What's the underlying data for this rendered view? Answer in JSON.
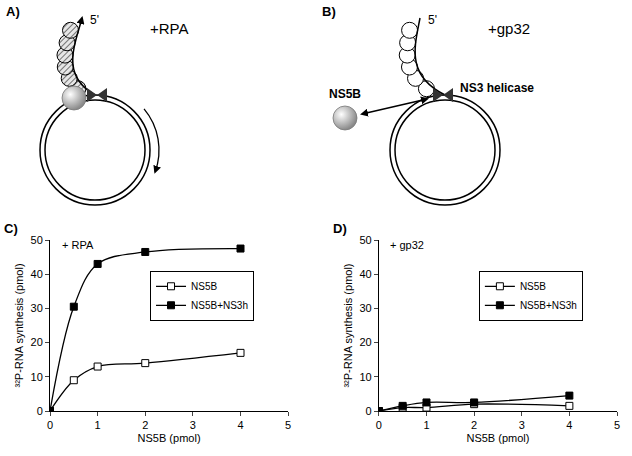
{
  "diagram": {
    "panel_a": {
      "label": "A)",
      "condition": "+RPA",
      "end_label": "5'"
    },
    "panel_b": {
      "label": "B)",
      "condition": "+gp32",
      "end_label": "5'",
      "polymerase": "NS5B",
      "helicase": "NS3 helicase"
    }
  },
  "chart_data": [
    {
      "type": "line",
      "panel_label": "C)",
      "annotation": "+ RPA",
      "x_label": "NS5B (pmol)",
      "y_label": "³²P-RNA synthesis (pmol)",
      "x": [
        0,
        0.5,
        1,
        2,
        4
      ],
      "xlim": [
        0,
        5
      ],
      "xticks": [
        0,
        1,
        2,
        3,
        4,
        5
      ],
      "ylim": [
        0,
        50
      ],
      "yticks": [
        0,
        10,
        20,
        30,
        40,
        50
      ],
      "grid": false,
      "legend": "top",
      "line_style": "smooth",
      "series": [
        {
          "name": "NS5B",
          "color": "#000000",
          "marker": "square-open",
          "values": [
            0,
            9,
            13,
            14,
            17
          ]
        },
        {
          "name": "NS5B+NS3h",
          "color": "#000000",
          "marker": "square",
          "values": [
            0,
            30.5,
            43,
            46.5,
            47.5
          ]
        }
      ]
    },
    {
      "type": "line",
      "panel_label": "D)",
      "annotation": "+ gp32",
      "x_label": "NS5B (pmol)",
      "y_label": "³²P-RNA synthesis (pmol)",
      "x": [
        0,
        0.5,
        1,
        2,
        4
      ],
      "xlim": [
        0,
        5
      ],
      "xticks": [
        0,
        1,
        2,
        3,
        4,
        5
      ],
      "ylim": [
        0,
        50
      ],
      "yticks": [
        0,
        10,
        20,
        30,
        40,
        50
      ],
      "grid": false,
      "legend": "top",
      "line_style": "smooth",
      "series": [
        {
          "name": "NS5B",
          "color": "#000000",
          "marker": "square-open",
          "values": [
            0,
            1,
            1,
            2,
            1.5
          ]
        },
        {
          "name": "NS5B+NS3h",
          "color": "#000000",
          "marker": "square",
          "values": [
            0,
            1.5,
            2.5,
            2.5,
            4.5
          ]
        }
      ]
    }
  ]
}
